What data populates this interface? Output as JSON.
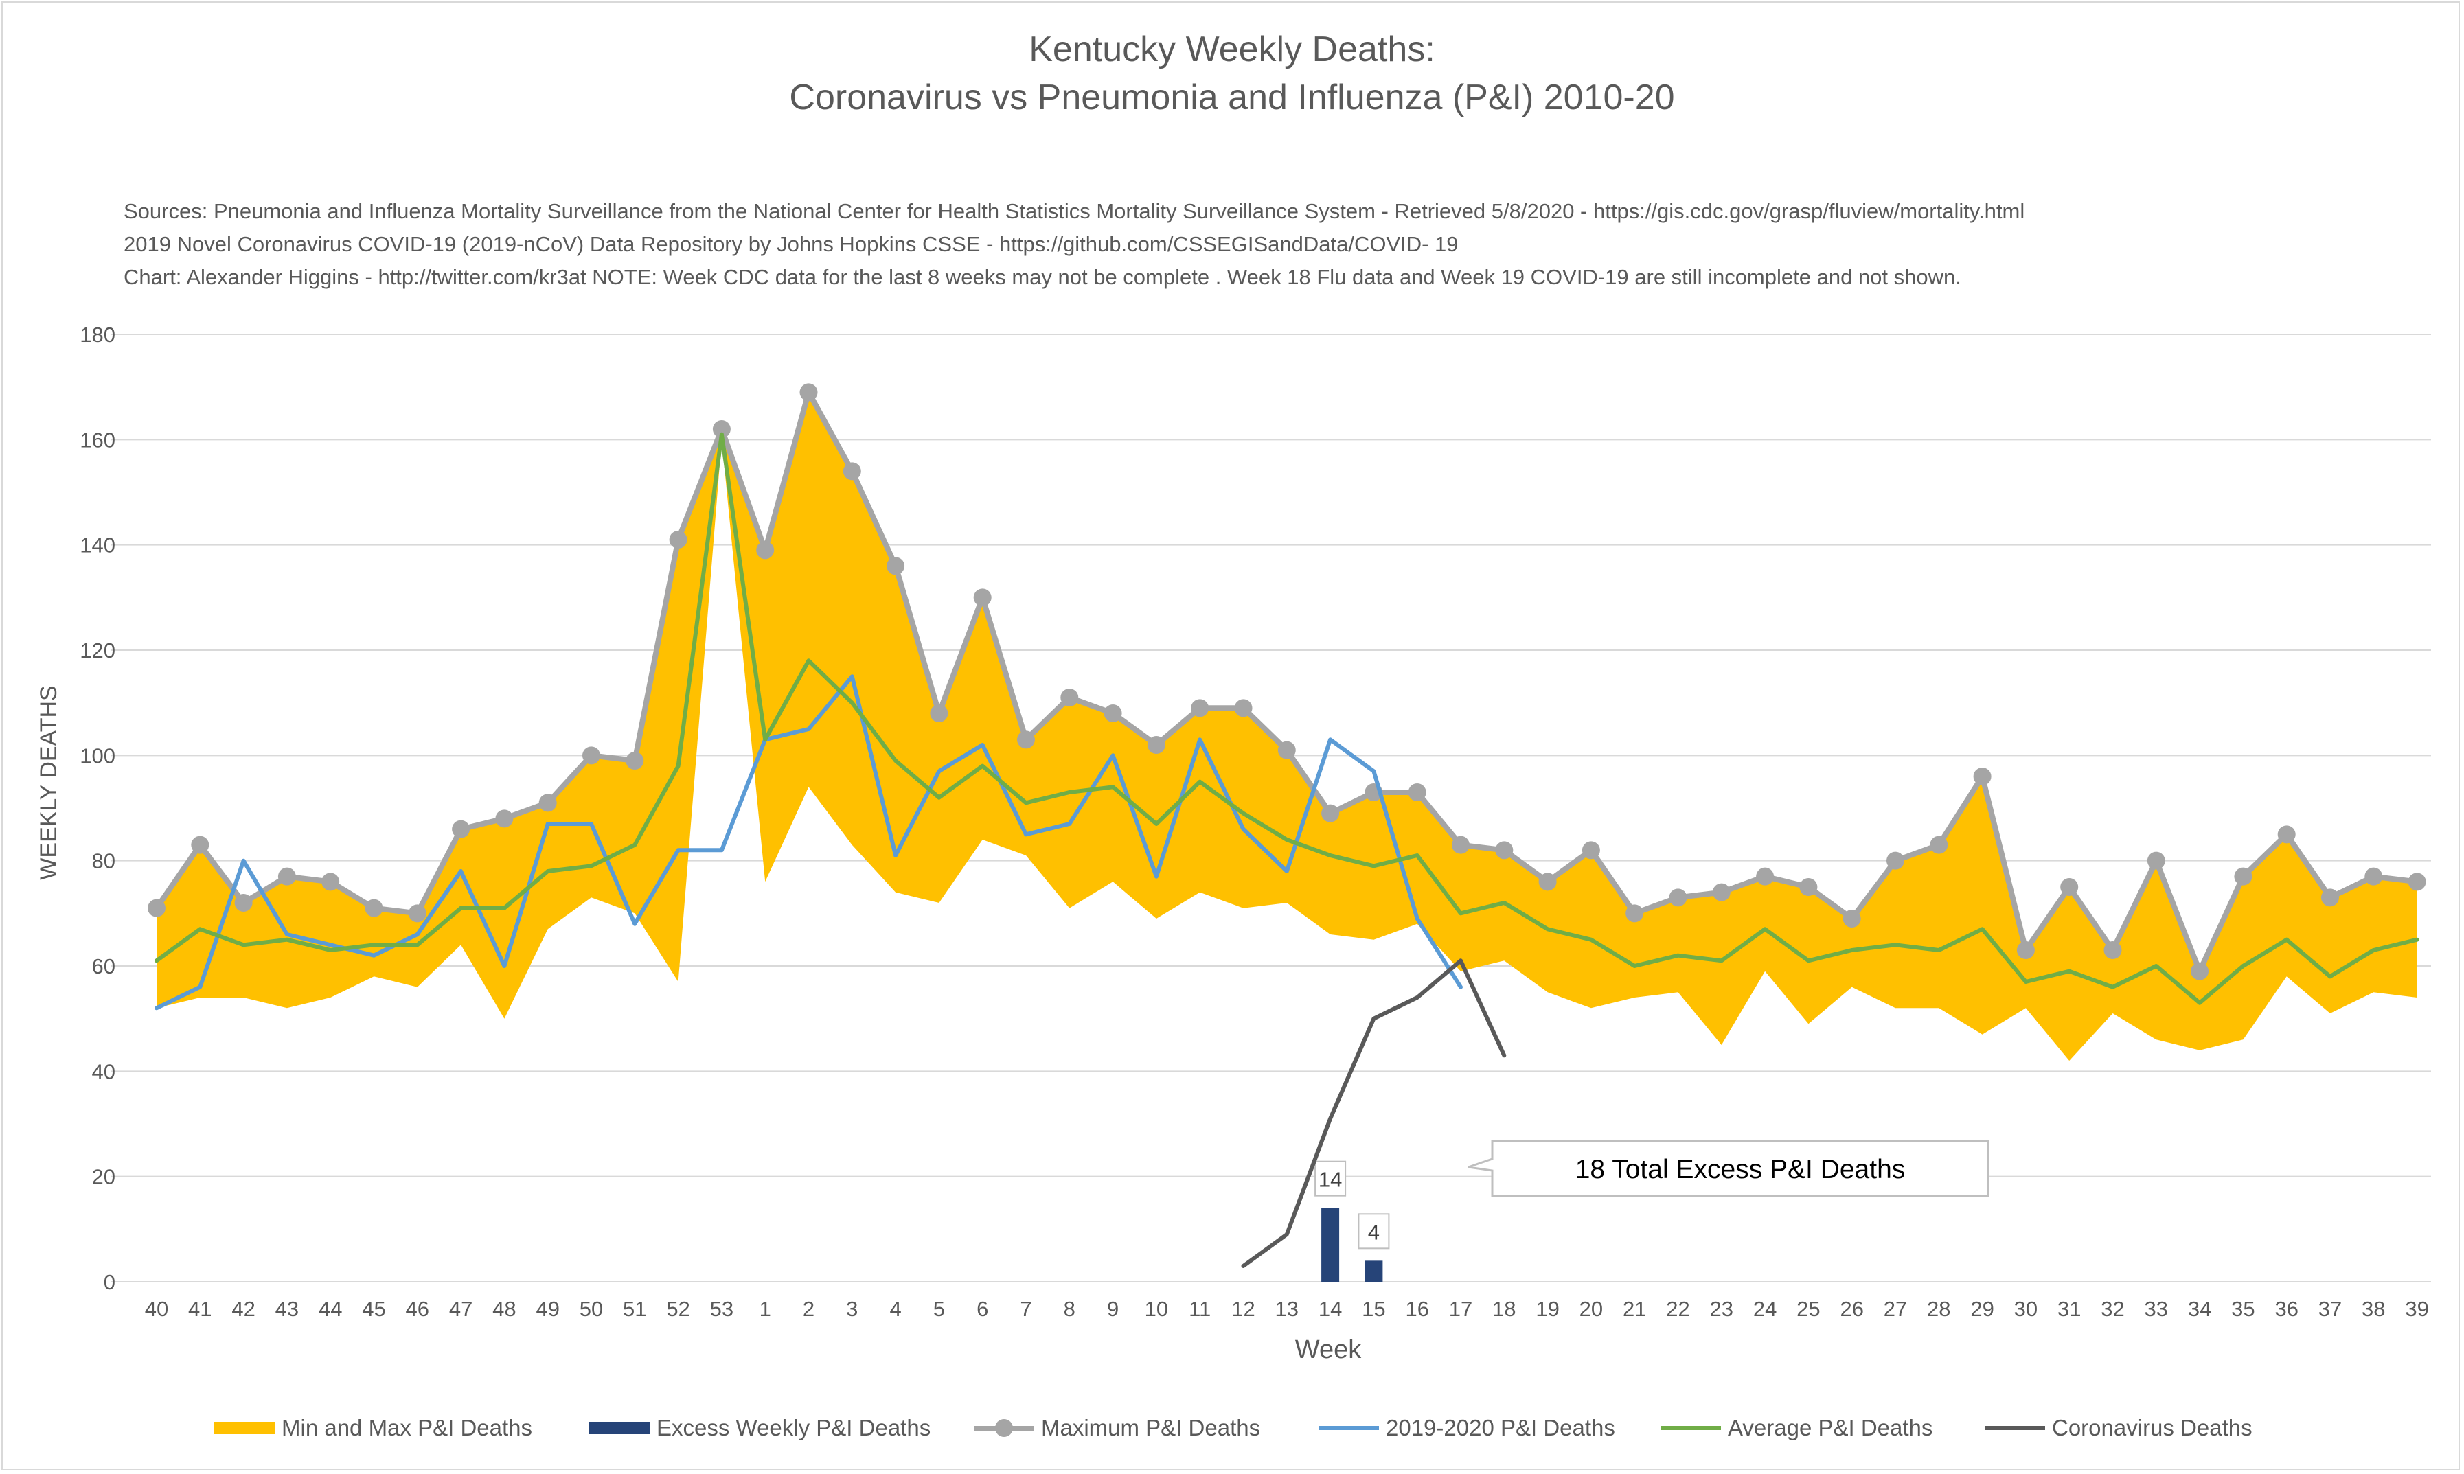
{
  "title": {
    "line1": "Kentucky Weekly Deaths:",
    "line2": "Coronavirus vs Pneumonia and Influenza (P&I) 2010-20"
  },
  "sources": [
    "Sources: Pneumonia and Influenza Mortality Surveillance from the National Center for Health Statistics Mortality Surveillance System - Retrieved 5/8/2020 - https://gis.cdc.gov/grasp/fluview/mortality.html",
    "2019 Novel Coronavirus COVID-19 (2019-nCoV) Data Repository by Johns Hopkins CSSE - https://github.com/CSSEGISandData/COVID- 19",
    "Chart: Alexander Higgins - http://twitter.com/kr3at   NOTE: Week CDC data for the last 8 weeks may not be complete . Week 18 Flu data and Week 19 COVID-19 are still incomplete and not shown."
  ],
  "callout": "18 Total Excess P&I Deaths",
  "legend": [
    {
      "label": "Min and Max P&I Deaths",
      "kind": "area",
      "color": "#FFC000"
    },
    {
      "label": "Excess Weekly P&I Deaths",
      "kind": "bar",
      "color": "#264478"
    },
    {
      "label": "Maximum P&I Deaths",
      "kind": "line-marker",
      "color": "#A5A5A5"
    },
    {
      "label": "2019-2020 P&I Deaths",
      "kind": "line",
      "color": "#5B9BD5"
    },
    {
      "label": "Average P&I Deaths",
      "kind": "line",
      "color": "#70AD47"
    },
    {
      "label": "Coronavirus Deaths",
      "kind": "line",
      "color": "#595959"
    }
  ],
  "chart_data": {
    "type": "line",
    "title": "Kentucky Weekly Deaths: Coronavirus vs Pneumonia and Influenza (P&I) 2010-20",
    "xlabel": "Week",
    "ylabel": "WEEKLY DEATHS",
    "ylim": [
      0,
      180
    ],
    "yticks": [
      0,
      20,
      40,
      60,
      80,
      100,
      120,
      140,
      160,
      180
    ],
    "grid": true,
    "legend_position": "bottom",
    "categories": [
      "40",
      "41",
      "42",
      "43",
      "44",
      "45",
      "46",
      "47",
      "48",
      "49",
      "50",
      "51",
      "52",
      "53",
      "1",
      "2",
      "3",
      "4",
      "5",
      "6",
      "7",
      "8",
      "9",
      "10",
      "11",
      "12",
      "13",
      "14",
      "15",
      "16",
      "17",
      "18",
      "19",
      "20",
      "21",
      "22",
      "23",
      "24",
      "25",
      "26",
      "27",
      "28",
      "29",
      "30",
      "31",
      "32",
      "33",
      "34",
      "35",
      "36",
      "37",
      "38",
      "39"
    ],
    "series": [
      {
        "name": "Maximum P&I Deaths",
        "color": "#A5A5A5",
        "values": [
          71,
          83,
          72,
          77,
          76,
          71,
          70,
          86,
          88,
          91,
          100,
          99,
          141,
          162,
          139,
          169,
          154,
          136,
          108,
          130,
          103,
          111,
          108,
          102,
          109,
          109,
          101,
          89,
          93,
          93,
          83,
          82,
          76,
          82,
          70,
          73,
          74,
          77,
          75,
          69,
          80,
          83,
          96,
          63,
          75,
          63,
          80,
          59,
          77,
          85,
          73,
          77,
          76
        ]
      },
      {
        "name": "Min P&I Deaths",
        "color": "#FFC000",
        "values": [
          52,
          54,
          54,
          52,
          54,
          58,
          56,
          64,
          50,
          67,
          73,
          70,
          57,
          160,
          76,
          94,
          83,
          74,
          72,
          84,
          81,
          71,
          76,
          69,
          74,
          71,
          72,
          66,
          65,
          68,
          59,
          61,
          55,
          52,
          54,
          55,
          45,
          59,
          49,
          56,
          52,
          52,
          47,
          52,
          42,
          51,
          46,
          44,
          46,
          58,
          51,
          55,
          54
        ]
      },
      {
        "name": "2019-2020 P&I Deaths",
        "color": "#5B9BD5",
        "values": [
          52,
          56,
          80,
          66,
          64,
          62,
          66,
          78,
          60,
          87,
          87,
          68,
          82,
          82,
          103,
          105,
          115,
          81,
          97,
          102,
          85,
          87,
          100,
          77,
          103,
          86,
          78,
          103,
          97,
          69,
          56,
          null,
          null,
          null,
          null,
          null,
          null,
          null,
          null,
          null,
          null,
          null,
          null,
          null,
          null,
          null,
          null,
          null,
          null,
          null,
          null,
          null,
          null
        ]
      },
      {
        "name": "Average P&I Deaths",
        "color": "#70AD47",
        "values": [
          61,
          67,
          64,
          65,
          63,
          64,
          64,
          71,
          71,
          78,
          79,
          83,
          98,
          161,
          103,
          118,
          110,
          99,
          92,
          98,
          91,
          93,
          94,
          87,
          95,
          89,
          84,
          81,
          79,
          81,
          70,
          72,
          67,
          65,
          60,
          62,
          61,
          67,
          61,
          63,
          64,
          63,
          67,
          57,
          59,
          56,
          60,
          53,
          60,
          65,
          58,
          63,
          65
        ]
      },
      {
        "name": "Coronavirus Deaths",
        "color": "#595959",
        "values": [
          null,
          null,
          null,
          null,
          null,
          null,
          null,
          null,
          null,
          null,
          null,
          null,
          null,
          null,
          null,
          null,
          null,
          null,
          null,
          null,
          null,
          null,
          null,
          null,
          null,
          3,
          9,
          31,
          50,
          54,
          61,
          43,
          null,
          null,
          null,
          null,
          null,
          null,
          null,
          null,
          null,
          null,
          null,
          null,
          null,
          null,
          null,
          null,
          null,
          null,
          null,
          null,
          null
        ]
      },
      {
        "name": "Excess Weekly P&I Deaths",
        "color": "#264478",
        "type": "bar",
        "values": [
          null,
          null,
          null,
          null,
          null,
          null,
          null,
          null,
          null,
          null,
          null,
          null,
          null,
          null,
          null,
          null,
          null,
          null,
          null,
          null,
          null,
          null,
          null,
          null,
          null,
          null,
          null,
          14,
          4,
          null,
          null,
          null,
          null,
          null,
          null,
          null,
          null,
          null,
          null,
          null,
          null,
          null,
          null,
          null,
          null,
          null,
          null,
          null,
          null,
          null,
          null,
          null,
          null
        ]
      }
    ]
  }
}
